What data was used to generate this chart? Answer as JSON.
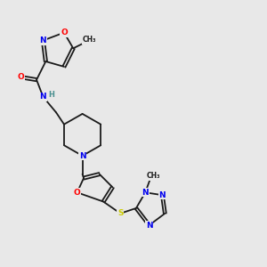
{
  "background_color": "#e8e8e8",
  "bond_color": "#1a1a1a",
  "atom_colors": {
    "O": "#ff0000",
    "N": "#0000ee",
    "S": "#cccc00",
    "C": "#1a1a1a",
    "H": "#4a9090"
  },
  "figsize": [
    3.0,
    3.0
  ],
  "dpi": 100,
  "lw": 1.3
}
